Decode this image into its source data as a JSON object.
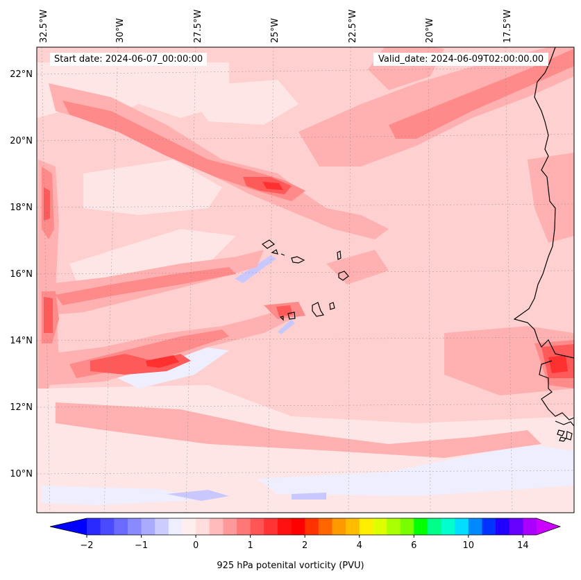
{
  "header": {
    "start_date": "Start date: 2024-06-07_00:00:00",
    "valid_date": "Valid_date: 2024-06-09T02:00:00.00"
  },
  "axes": {
    "lon_labels": [
      "32.5°W",
      "30°W",
      "27.5°W",
      "25°W",
      "22.5°W",
      "20°W",
      "17.5°W"
    ],
    "lat_labels": [
      "22°N",
      "20°N",
      "18°N",
      "16°N",
      "14°N",
      "12°N",
      "10°N"
    ]
  },
  "colorbar": {
    "label": "925 hPa potenital vorticity (PVU)",
    "tick_labels": [
      "−2",
      "−1",
      "0",
      "1",
      "2",
      "4",
      "6",
      "10",
      "14"
    ],
    "tick_levels": [
      -2,
      -1,
      0,
      1,
      2,
      4,
      6,
      10,
      14
    ],
    "levels": [
      -2,
      -1.75,
      -1.5,
      -1.25,
      -1,
      -0.75,
      -0.5,
      -0.25,
      0,
      0.25,
      0.5,
      0.75,
      1,
      1.25,
      1.5,
      1.75,
      2,
      2.5,
      3,
      3.5,
      4,
      4.5,
      5,
      5.5,
      6,
      7,
      8,
      9,
      10,
      11,
      12,
      13,
      14,
      15
    ],
    "colors": [
      "#2a2aff",
      "#4a4aff",
      "#6a6aff",
      "#8a8aff",
      "#aaaaff",
      "#ccccff",
      "#eeeeff",
      "#ffeeee",
      "#ffdddd",
      "#ffbbbb",
      "#ff9999",
      "#ff7777",
      "#ff5555",
      "#ff3333",
      "#ff1111",
      "#ff0000",
      "#ff3300",
      "#ff6600",
      "#ff9900",
      "#ffbb00",
      "#ffee00",
      "#ddff00",
      "#aaff00",
      "#77ff00",
      "#00ff00",
      "#00ff88",
      "#00ffcc",
      "#00ddff",
      "#0088ff",
      "#0033ff",
      "#2200ff",
      "#6600ff",
      "#aa00ff"
    ],
    "under_color": "#0000ff",
    "over_color": "#cc00ff"
  },
  "field_colors": {
    "background": "#ffd0d0",
    "light": "#ffe6e6",
    "medium": "#ffb0b0",
    "strong": "#ff8a8a",
    "peak": "#ff5a5a",
    "max": "#ff3030",
    "neg_light": "#eeeeff",
    "neg": "#c8c8ff"
  }
}
